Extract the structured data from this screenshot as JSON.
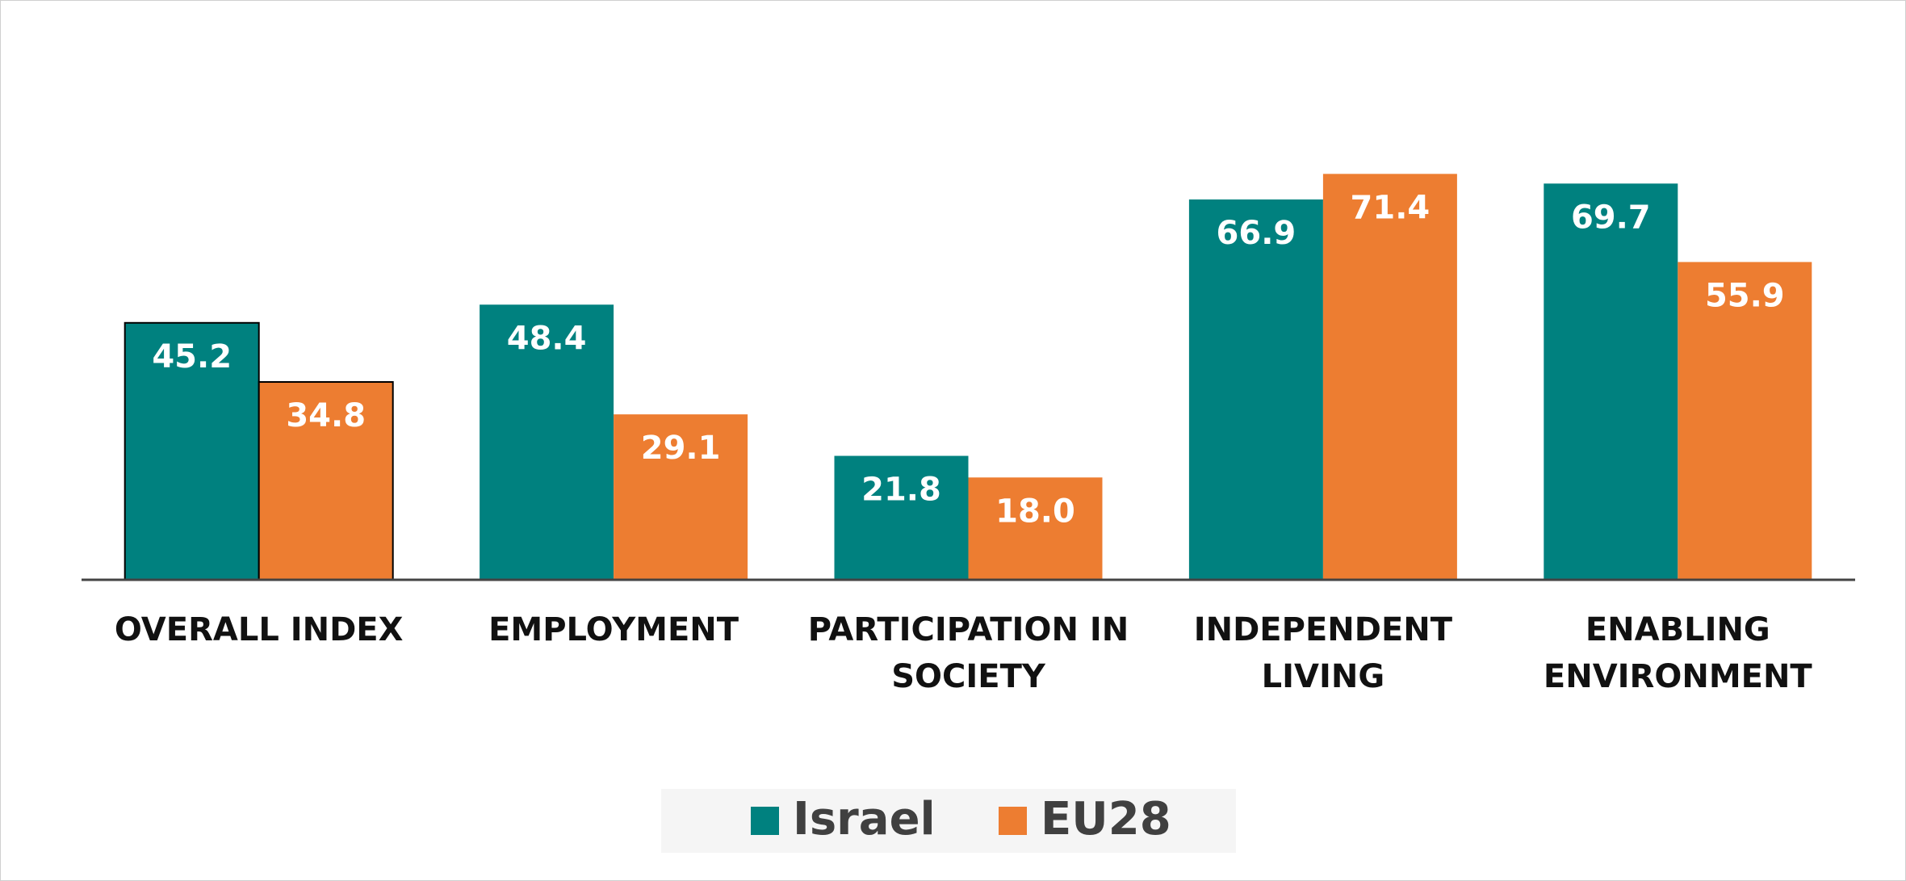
{
  "chart_data": {
    "type": "bar",
    "categories": [
      "OVERALL INDEX",
      "EMPLOYMENT",
      "PARTICIPATION IN SOCIETY",
      "INDEPENDENT LIVING",
      "ENABLING ENVIRONMENT"
    ],
    "series": [
      {
        "name": "Israel",
        "color": "#00817f",
        "values": [
          45.2,
          48.4,
          21.8,
          66.9,
          69.7
        ],
        "value_labels": [
          "45.2",
          "48.4",
          "21.8",
          "66.9",
          "69.7"
        ]
      },
      {
        "name": "EU28",
        "color": "#ed7d31",
        "values": [
          34.8,
          29.1,
          18.0,
          71.4,
          55.9
        ],
        "value_labels": [
          "34.8",
          "29.1",
          "18.0",
          "71.4",
          "55.9"
        ]
      }
    ],
    "legend": "bottom"
  }
}
